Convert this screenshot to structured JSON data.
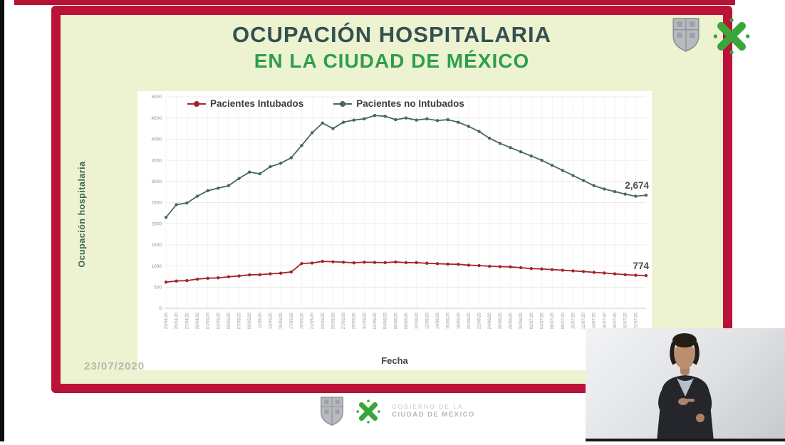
{
  "slide": {
    "title_line1": "OCUPACIÓN HOSPITALARIA",
    "title_line2": "EN LA CIUDAD DE MÉXICO",
    "date_stamp": "23/07/2020"
  },
  "footer": {
    "gov_line1": "GOBIERNO DE LA",
    "gov_line2": "CIUDAD DE MÉXICO"
  },
  "colors": {
    "frame_red": "#bb1237",
    "slide_bg": "#edf2d1",
    "title_primary": "#33514f",
    "title_secondary": "#2e9e4b",
    "cdmx_green": "#3aa63a",
    "intubados_red": "#a3242e",
    "no_intubados_green": "#46695a"
  },
  "chart_data": {
    "type": "line",
    "title": "",
    "xlabel": "Fecha",
    "ylabel": "Ocupación hospitalaria",
    "ylim": [
      0,
      5000
    ],
    "ytick_step": 500,
    "grid": true,
    "legend_position": "top",
    "x": [
      "23/04/20",
      "25/04/20",
      "27/04/20",
      "29/04/20",
      "01/05/20",
      "03/05/20",
      "05/05/20",
      "07/05/20",
      "09/05/20",
      "11/05/20",
      "13/05/20",
      "15/05/20",
      "17/05/20",
      "19/05/20",
      "21/05/20",
      "23/05/20",
      "25/05/20",
      "27/05/20",
      "29/05/20",
      "31/05/20",
      "02/06/20",
      "04/06/20",
      "06/06/20",
      "08/06/20",
      "10/06/20",
      "12/06/20",
      "14/06/20",
      "16/06/20",
      "18/06/20",
      "20/06/20",
      "22/06/20",
      "24/06/20",
      "26/06/20",
      "28/06/20",
      "30/06/20",
      "02/07/20",
      "04/07/20",
      "06/07/20",
      "08/07/20",
      "10/07/20",
      "12/07/20",
      "14/07/20",
      "16/07/20",
      "18/07/20",
      "20/07/20",
      "22/07/20",
      "23/07/20"
    ],
    "series": [
      {
        "name": "Pacientes Intubados",
        "color": "#a3242e",
        "end_label": "774",
        "values": [
          620,
          645,
          655,
          690,
          710,
          720,
          745,
          765,
          790,
          795,
          815,
          830,
          860,
          1060,
          1070,
          1110,
          1100,
          1090,
          1075,
          1090,
          1085,
          1080,
          1095,
          1080,
          1080,
          1065,
          1055,
          1045,
          1040,
          1020,
          1010,
          995,
          985,
          980,
          960,
          940,
          930,
          915,
          900,
          885,
          870,
          850,
          835,
          815,
          795,
          782,
          774
        ]
      },
      {
        "name": "Pacientes no Intubados",
        "color": "#46695a",
        "end_label": "2,674",
        "values": [
          2150,
          2450,
          2490,
          2650,
          2780,
          2840,
          2900,
          3070,
          3220,
          3180,
          3350,
          3430,
          3560,
          3850,
          4150,
          4380,
          4250,
          4400,
          4450,
          4480,
          4560,
          4540,
          4460,
          4500,
          4450,
          4480,
          4440,
          4460,
          4400,
          4300,
          4180,
          4020,
          3900,
          3800,
          3700,
          3600,
          3500,
          3380,
          3260,
          3140,
          3020,
          2900,
          2820,
          2760,
          2700,
          2650,
          2674
        ]
      }
    ]
  }
}
